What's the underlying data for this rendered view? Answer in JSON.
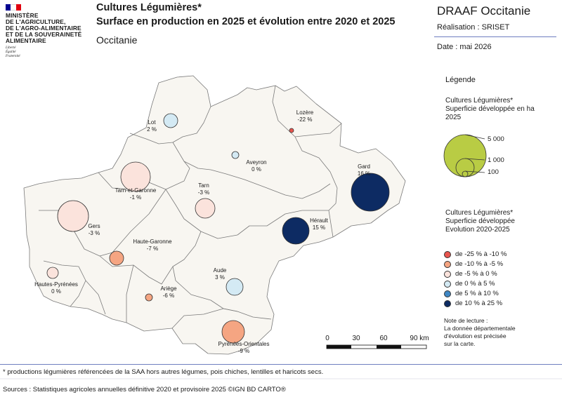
{
  "logo": {
    "lines": [
      "MINISTÈRE",
      "DE L'AGRICULTURE,",
      "DE L'AGRO-ALIMENTAIRE",
      "ET DE LA SOUVERAINETÉ",
      "ALIMENTAIRE"
    ],
    "motto": [
      "Liberté",
      "Égalité",
      "Fraternité"
    ],
    "colors": {
      "blue": "#000091",
      "white": "#ffffff",
      "red": "#e1000f"
    }
  },
  "header": {
    "title_line1": "Cultures Légumières*",
    "title_line2": "Surface en production en 2025 et évolution entre 2020 et 2025",
    "region": "Occitanie",
    "organization": "DRAAF Occitanie",
    "realisation": "Réalisation : SRISET",
    "date": "Date : mai 2026"
  },
  "legend": {
    "title": "Légende",
    "size_title": "Cultures Légumières*\nSuperficie développée en ha\n2025",
    "size_values": [
      "5 000",
      "1 000",
      "100"
    ],
    "size_fill": "#b9cc44",
    "color_title": "Cultures Légumières*\nSuperficie développée\nEvolution 2020-2025",
    "classes": [
      {
        "label": "de -25 % à -10 %",
        "color": "#e8554e"
      },
      {
        "label": "de -10 % à -5 %",
        "color": "#f5a582"
      },
      {
        "label": "de -5 % à 0 %",
        "color": "#fbe3dc"
      },
      {
        "label": "de 0 % à 5 %",
        "color": "#d4eaf4"
      },
      {
        "label": "de 5 % à 10 %",
        "color": "#3f87c4"
      },
      {
        "label": "de 10 % à 25 %",
        "color": "#0d2b63"
      }
    ],
    "note": "Note de lecture :\nLa donnée départementale\nd'évolution est précisée\nsur la carte."
  },
  "map": {
    "land_color": "#f8f6f1",
    "border_color": "#7a7a7a",
    "departments": [
      {
        "name": "Lot",
        "value": "2 %",
        "class": 3
      },
      {
        "name": "Lozère",
        "value": "-22 %",
        "class": 0
      },
      {
        "name": "Aveyron",
        "value": "0 %",
        "class": 3
      },
      {
        "name": "Gard",
        "value": "16 %",
        "class": 5
      },
      {
        "name": "Tarn-et-Garonne",
        "value": "-1 %",
        "class": 2
      },
      {
        "name": "Tarn",
        "value": "-3 %",
        "class": 2
      },
      {
        "name": "Gers",
        "value": "-3 %",
        "class": 2
      },
      {
        "name": "Hérault",
        "value": "15 %",
        "class": 5
      },
      {
        "name": "Haute-Garonne",
        "value": "-7 %",
        "class": 1
      },
      {
        "name": "Hautes-Pyrénées",
        "value": "0 %",
        "class": 2
      },
      {
        "name": "Aude",
        "value": "3 %",
        "class": 3
      },
      {
        "name": "Ariège",
        "value": "-6 %",
        "class": 1
      },
      {
        "name": "Pyrénées-Orientales",
        "value": "-9 %",
        "class": 1
      }
    ],
    "scale": {
      "ticks": [
        "0",
        "30",
        "60",
        "90 km"
      ]
    }
  },
  "footer": {
    "footnote": "* productions légumières référencées de la SAA hors autres légumes, pois chiches, lentilles et haricots secs.",
    "sources": "Sources : Statistiques agricoles annuelles définitive 2020 et provisoire 2025 ©IGN BD CARTO®"
  }
}
